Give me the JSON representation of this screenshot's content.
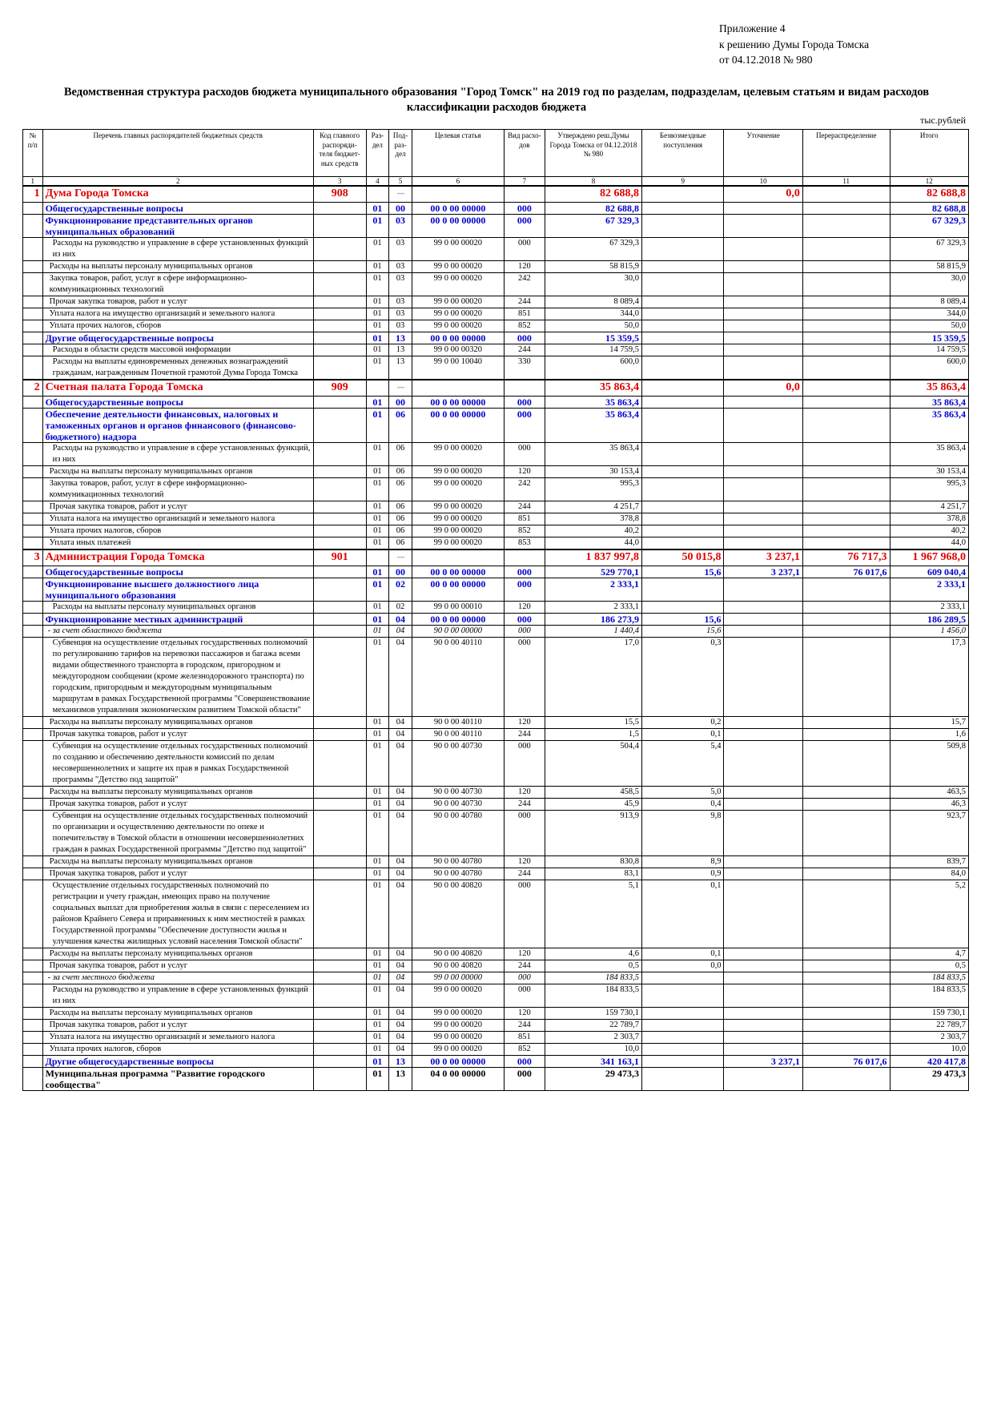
{
  "appendix": [
    "Приложение 4",
    "к решению Думы Города Томска",
    "от 04.12.2018 № 980"
  ],
  "title": "Ведомственная структура расходов бюджета муниципального образования \"Город Томск\" на 2019 год по разделам, подразделам, целевым статьям и видам расходов классификации расходов бюджета",
  "units": "тыс.рублей",
  "headers": [
    "№ п/п",
    "Перечень главных распорядителей бюджетных средств",
    "Код главного распоряди-теля бюджет-ных средств",
    "Раз-дел",
    "Под-раз-дел",
    "Целевая статья",
    "Вид расхо-дов",
    "Утверждено реш.Думы Города Томска от 04.12.2018 № 980",
    "Безвозмездные поступления",
    "Уточнение",
    "Перераспределение",
    "Итого"
  ],
  "column_numbers": [
    "1",
    "2",
    "3",
    "4",
    "5",
    "6",
    "7",
    "8",
    "9",
    "10",
    "11",
    "12"
  ],
  "rows": [
    {
      "type": "grbs",
      "cells": [
        "1",
        "Дума Города Томска",
        "908",
        "",
        "",
        "",
        "",
        "82 688,8",
        "",
        "0,0",
        "",
        "82 688,8"
      ]
    },
    {
      "type": "sec",
      "cells": [
        "",
        "Общегосударственные вопросы",
        "",
        "01",
        "00",
        "00 0 00 00000",
        "000",
        "82 688,8",
        "",
        "",
        "",
        "82 688,8"
      ]
    },
    {
      "type": "sec",
      "cells": [
        "",
        "Функционирование представительных органов муниципальных образований",
        "",
        "01",
        "03",
        "00 0 00 00000",
        "000",
        "67 329,3",
        "",
        "",
        "",
        "67 329,3"
      ]
    },
    {
      "type": "item",
      "cells": [
        "",
        "Расходы на руководство и управление в сфере установленных функций из них",
        "",
        "01",
        "03",
        "99 0 00 00020",
        "000",
        "67 329,3",
        "",
        "",
        "",
        "67 329,3"
      ]
    },
    {
      "type": "sub",
      "cells": [
        "",
        "Расходы на выплаты персоналу муниципальных органов",
        "",
        "01",
        "03",
        "99 0 00 00020",
        "120",
        "58 815,9",
        "",
        "",
        "",
        "58 815,9"
      ]
    },
    {
      "type": "sub",
      "cells": [
        "",
        "Закупка товаров, работ, услуг в сфере информационно-коммуникационных технологий",
        "",
        "01",
        "03",
        "99 0 00 00020",
        "242",
        "30,0",
        "",
        "",
        "",
        "30,0"
      ]
    },
    {
      "type": "sub",
      "cells": [
        "",
        "Прочая закупка товаров, работ и услуг",
        "",
        "01",
        "03",
        "99 0 00 00020",
        "244",
        "8 089,4",
        "",
        "",
        "",
        "8 089,4"
      ]
    },
    {
      "type": "sub",
      "cells": [
        "",
        "Уплата налога на имущество организаций и земельного налога",
        "",
        "01",
        "03",
        "99 0 00 00020",
        "851",
        "344,0",
        "",
        "",
        "",
        "344,0"
      ]
    },
    {
      "type": "sub",
      "cells": [
        "",
        "Уплата прочих налогов, сборов",
        "",
        "01",
        "03",
        "99 0 00 00020",
        "852",
        "50,0",
        "",
        "",
        "",
        "50,0"
      ]
    },
    {
      "type": "sec",
      "cells": [
        "",
        "Другие общегосударственные вопросы",
        "",
        "01",
        "13",
        "00 0 00 00000",
        "000",
        "15 359,5",
        "",
        "",
        "",
        "15 359,5"
      ]
    },
    {
      "type": "item",
      "cells": [
        "",
        "Расходы в области средств массовой информации",
        "",
        "01",
        "13",
        "99 0 00 00320",
        "244",
        "14 759,5",
        "",
        "",
        "",
        "14 759,5"
      ]
    },
    {
      "type": "item",
      "cells": [
        "",
        "Расходы на выплаты единовременных денежных вознаграждений гражданам, награжденным Почетной грамотой Думы Города Томска",
        "",
        "01",
        "13",
        "99 0 00 10040",
        "330",
        "600,0",
        "",
        "",
        "",
        "600,0"
      ]
    },
    {
      "type": "grbs",
      "cells": [
        "2",
        "Счетная палата Города Томска",
        "909",
        "",
        "",
        "",
        "",
        "35 863,4",
        "",
        "0,0",
        "",
        "35 863,4"
      ]
    },
    {
      "type": "sec",
      "cells": [
        "",
        "Общегосударственные вопросы",
        "",
        "01",
        "00",
        "00 0 00 00000",
        "000",
        "35 863,4",
        "",
        "",
        "",
        "35 863,4"
      ]
    },
    {
      "type": "sec",
      "cells": [
        "",
        "Обеспечение деятельности финансовых, налоговых и таможенных органов и органов финансового (финансово-бюджетного) надзора",
        "",
        "01",
        "06",
        "00 0 00 00000",
        "000",
        "35 863,4",
        "",
        "",
        "",
        "35 863,4"
      ]
    },
    {
      "type": "item",
      "cells": [
        "",
        "Расходы на руководство и управление в сфере установленных функций, из них",
        "",
        "01",
        "06",
        "99 0 00 00020",
        "000",
        "35 863,4",
        "",
        "",
        "",
        "35 863,4"
      ]
    },
    {
      "type": "sub",
      "cells": [
        "",
        "Расходы на выплаты персоналу муниципальных органов",
        "",
        "01",
        "06",
        "99 0 00 00020",
        "120",
        "30 153,4",
        "",
        "",
        "",
        "30 153,4"
      ]
    },
    {
      "type": "sub",
      "cells": [
        "",
        "Закупка товаров, работ, услуг в сфере информационно-коммуникационных технологий",
        "",
        "01",
        "06",
        "99 0 00 00020",
        "242",
        "995,3",
        "",
        "",
        "",
        "995,3"
      ]
    },
    {
      "type": "sub",
      "cells": [
        "",
        "Прочая закупка товаров, работ и услуг",
        "",
        "01",
        "06",
        "99 0 00 00020",
        "244",
        "4 251,7",
        "",
        "",
        "",
        "4 251,7"
      ]
    },
    {
      "type": "sub",
      "cells": [
        "",
        "Уплата налога на имущество организаций и земельного налога",
        "",
        "01",
        "06",
        "99 0 00 00020",
        "851",
        "378,8",
        "",
        "",
        "",
        "378,8"
      ]
    },
    {
      "type": "sub",
      "cells": [
        "",
        "Уплата прочих налогов, сборов",
        "",
        "01",
        "06",
        "99 0 00 00020",
        "852",
        "40,2",
        "",
        "",
        "",
        "40,2"
      ]
    },
    {
      "type": "sub",
      "cells": [
        "",
        "Уплата иных платежей",
        "",
        "01",
        "06",
        "99 0 00 00020",
        "853",
        "44,0",
        "",
        "",
        "",
        "44,0"
      ]
    },
    {
      "type": "grbs",
      "cells": [
        "3",
        "Администрация Города Томска",
        "901",
        "",
        "",
        "",
        "",
        "1 837 997,8",
        "50 015,8",
        "3 237,1",
        "76 717,3",
        "1 967 968,0"
      ]
    },
    {
      "type": "sec",
      "cells": [
        "",
        "Общегосударственные вопросы",
        "",
        "01",
        "00",
        "00 0 00 00000",
        "000",
        "529 770,1",
        "15,6",
        "3 237,1",
        "76 017,6",
        "609 040,4"
      ]
    },
    {
      "type": "sec",
      "cells": [
        "",
        "Функционирование высшего должностного лица муниципального образования",
        "",
        "01",
        "02",
        "00 0 00 00000",
        "000",
        "2 333,1",
        "",
        "",
        "",
        "2 333,1"
      ]
    },
    {
      "type": "item",
      "cells": [
        "",
        "Расходы на выплаты персоналу муниципальных органов",
        "",
        "01",
        "02",
        "99 0 00 00010",
        "120",
        "2 333,1",
        "",
        "",
        "",
        "2 333,1"
      ]
    },
    {
      "type": "sec",
      "cells": [
        "",
        "Функционирование местных администраций",
        "",
        "01",
        "04",
        "00 0 00 00000",
        "000",
        "186 273,9",
        "15,6",
        "",
        "",
        "186 289,5"
      ]
    },
    {
      "type": "src",
      "cells": [
        "",
        "- за счет областного бюджета",
        "",
        "01",
        "04",
        "90 0 00 00000",
        "000",
        "1 440,4",
        "15,6",
        "",
        "",
        "1 456,0"
      ]
    },
    {
      "type": "item",
      "cells": [
        "",
        "Субвенция на осуществление отдельных государственных полномочий по регулированию тарифов на перевозки пассажиров и багажа всеми видами общественного транспорта в городском, пригородном и междугородном сообщении (кроме железнодорожного транспорта) по городским, пригородным и междугородным муниципальным маршрутам в рамках Государственной программы \"Совершенствование механизмов управления экономическим развитием Томской области\"",
        "",
        "01",
        "04",
        "90 0 00 40110",
        "000",
        "17,0",
        "0,3",
        "",
        "",
        "17,3"
      ]
    },
    {
      "type": "sub",
      "cells": [
        "",
        "Расходы на выплаты персоналу муниципальных органов",
        "",
        "01",
        "04",
        "90 0 00 40110",
        "120",
        "15,5",
        "0,2",
        "",
        "",
        "15,7"
      ]
    },
    {
      "type": "sub",
      "cells": [
        "",
        "Прочая закупка товаров, работ и услуг",
        "",
        "01",
        "04",
        "90 0 00 40110",
        "244",
        "1,5",
        "0,1",
        "",
        "",
        "1,6"
      ]
    },
    {
      "type": "item",
      "cells": [
        "",
        "Субвенция на осуществление отдельных государственных полномочий по созданию и обеспечению деятельности комиссий по делам несовершеннолетних и защите их прав в рамках Государственной программы \"Детство под защитой\"",
        "",
        "01",
        "04",
        "90 0 00 40730",
        "000",
        "504,4",
        "5,4",
        "",
        "",
        "509,8"
      ]
    },
    {
      "type": "sub",
      "cells": [
        "",
        "Расходы на выплаты персоналу муниципальных органов",
        "",
        "01",
        "04",
        "90 0 00 40730",
        "120",
        "458,5",
        "5,0",
        "",
        "",
        "463,5"
      ]
    },
    {
      "type": "sub",
      "cells": [
        "",
        "Прочая закупка товаров, работ и услуг",
        "",
        "01",
        "04",
        "90 0 00 40730",
        "244",
        "45,9",
        "0,4",
        "",
        "",
        "46,3"
      ]
    },
    {
      "type": "item",
      "cells": [
        "",
        "Субвенция на осуществление отдельных государственных полномочий по организации и осуществлению деятельности по опеке и попечительству в Томской области в отношении несовершеннолетних граждан в рамках Государственной программы \"Детство под защитой\"",
        "",
        "01",
        "04",
        "90 0 00 40780",
        "000",
        "913,9",
        "9,8",
        "",
        "",
        "923,7"
      ]
    },
    {
      "type": "sub",
      "cells": [
        "",
        "Расходы на выплаты персоналу муниципальных органов",
        "",
        "01",
        "04",
        "90 0 00 40780",
        "120",
        "830,8",
        "8,9",
        "",
        "",
        "839,7"
      ]
    },
    {
      "type": "sub",
      "cells": [
        "",
        "Прочая закупка товаров, работ и услуг",
        "",
        "01",
        "04",
        "90 0 00 40780",
        "244",
        "83,1",
        "0,9",
        "",
        "",
        "84,0"
      ]
    },
    {
      "type": "item",
      "cells": [
        "",
        "Осуществление отдельных государственных полномочий по регистрации и учету граждан, имеющих право на получение социальных выплат для приобретения жилья в связи с переселением из районов Крайнего Севера и приравненных к ним местностей в рамках Государственной программы \"Обеспечение доступности жилья и улучшения качества жилищных условий населения Томской области\"",
        "",
        "01",
        "04",
        "90 0 00 40820",
        "000",
        "5,1",
        "0,1",
        "",
        "",
        "5,2"
      ]
    },
    {
      "type": "sub",
      "cells": [
        "",
        "Расходы на выплаты персоналу муниципальных органов",
        "",
        "01",
        "04",
        "90 0 00 40820",
        "120",
        "4,6",
        "0,1",
        "",
        "",
        "4,7"
      ]
    },
    {
      "type": "sub",
      "cells": [
        "",
        "Прочая закупка товаров, работ и услуг",
        "",
        "01",
        "04",
        "90 0 00 40820",
        "244",
        "0,5",
        "0,0",
        "",
        "",
        "0,5"
      ]
    },
    {
      "type": "src",
      "cells": [
        "",
        "- за счет местного бюджета",
        "",
        "01",
        "04",
        "99 0 00 00000",
        "000",
        "184 833,5",
        "",
        "",
        "",
        "184 833,5"
      ]
    },
    {
      "type": "item",
      "cells": [
        "",
        "Расходы на руководство и управление в сфере установленных функций из них",
        "",
        "01",
        "04",
        "99 0 00 00020",
        "000",
        "184 833,5",
        "",
        "",
        "",
        "184 833,5"
      ]
    },
    {
      "type": "sub",
      "cells": [
        "",
        "Расходы на выплаты персоналу муниципальных органов",
        "",
        "01",
        "04",
        "99 0 00 00020",
        "120",
        "159 730,1",
        "",
        "",
        "",
        "159 730,1"
      ]
    },
    {
      "type": "sub",
      "cells": [
        "",
        "Прочая закупка товаров, работ и услуг",
        "",
        "01",
        "04",
        "99 0 00 00020",
        "244",
        "22 789,7",
        "",
        "",
        "",
        "22 789,7"
      ]
    },
    {
      "type": "sub",
      "cells": [
        "",
        "Уплата налога на имущество организаций и земельного налога",
        "",
        "01",
        "04",
        "99 0 00 00020",
        "851",
        "2 303,7",
        "",
        "",
        "",
        "2 303,7"
      ]
    },
    {
      "type": "sub",
      "cells": [
        "",
        "Уплата прочих налогов, сборов",
        "",
        "01",
        "04",
        "99 0 00 00020",
        "852",
        "10,0",
        "",
        "",
        "",
        "10,0"
      ]
    },
    {
      "type": "sec",
      "cells": [
        "",
        "Другие общегосударственные вопросы",
        "",
        "01",
        "13",
        "00 0 00 00000",
        "000",
        "341 163,1",
        "",
        "3 237,1",
        "76 017,6",
        "420 417,8"
      ]
    },
    {
      "type": "gp",
      "cells": [
        "",
        "Муниципальная программа \"Развитие городского сообщества\"",
        "",
        "01",
        "13",
        "04 0 00 00000",
        "000",
        "29 473,3",
        "",
        "",
        "",
        "29 473,3"
      ]
    }
  ]
}
